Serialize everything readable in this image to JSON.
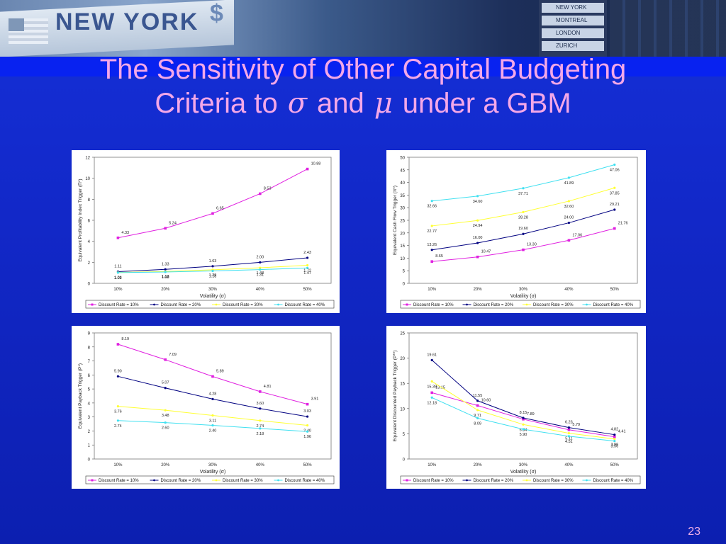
{
  "slide": {
    "title_line1": "The Sensitivity of Other Capital Budgeting",
    "title_line2_pre": "Criteria to",
    "sigma": "σ",
    "and": "and",
    "mu": "μ",
    "title_line2_post": "under a GBM",
    "page_number": "23"
  },
  "background": {
    "sign_text": "NEW YORK",
    "dollar": "$",
    "board_rows": [
      "NEW YORK",
      "MONTREAL",
      "LONDON",
      "ZURICH"
    ]
  },
  "colors": {
    "title": "#f4a8e8",
    "series": [
      "#e020e0",
      "#000080",
      "#ffff33",
      "#40e0f0"
    ]
  },
  "chart_data": [
    {
      "type": "line",
      "ylabel": "Equivalent Profitability Index Trigger",
      "ylabel_sym": "(Π*)",
      "xlabel": "Volatility",
      "xlabel_sym": "(σ)",
      "categories": [
        "10%",
        "20%",
        "30%",
        "40%",
        "50%"
      ],
      "ylim": [
        0,
        12
      ],
      "yticks": [
        0,
        2,
        4,
        6,
        8,
        10,
        12
      ],
      "series": [
        {
          "name": "Discount Rate = 10%",
          "values": [
            4.33,
            5.24,
            6.65,
            8.53,
            10.88
          ]
        },
        {
          "name": "Discount Rate = 20%",
          "values": [
            1.11,
            1.33,
            1.63,
            2.0,
            2.43
          ]
        },
        {
          "name": "Discount Rate = 30%",
          "values": [
            1.04,
            1.13,
            1.29,
            1.48,
            1.72
          ]
        },
        {
          "name": "Discount Rate = 40%",
          "values": [
            1.02,
            1.08,
            1.18,
            1.31,
            1.47
          ]
        }
      ]
    },
    {
      "type": "line",
      "ylabel": "Equivalent Cash Flow Trigger",
      "ylabel_sym": "(π*)",
      "xlabel": "Volatility",
      "xlabel_sym": "(σ)",
      "categories": [
        "10%",
        "20%",
        "30%",
        "40%",
        "50%"
      ],
      "ylim": [
        0,
        50
      ],
      "yticks": [
        0,
        5,
        10,
        15,
        20,
        25,
        30,
        35,
        40,
        45,
        50
      ],
      "series": [
        {
          "name": "Discount Rate = 10%",
          "values": [
            8.65,
            10.47,
            13.3,
            17.06,
            21.76
          ]
        },
        {
          "name": "Discount Rate = 20%",
          "values": [
            13.26,
            16.0,
            19.6,
            24.0,
            29.21
          ]
        },
        {
          "name": "Discount Rate = 30%",
          "values": [
            22.77,
            24.94,
            28.28,
            32.6,
            37.85
          ]
        },
        {
          "name": "Discount Rate = 40%",
          "values": [
            32.66,
            34.6,
            37.71,
            41.89,
            47.06
          ]
        }
      ]
    },
    {
      "type": "line",
      "ylabel": "Equivalent Payback Trigger",
      "ylabel_sym": "(P*)",
      "xlabel": "Volatility",
      "xlabel_sym": "(σ)",
      "categories": [
        "10%",
        "20%",
        "30%",
        "40%",
        "50%"
      ],
      "ylim": [
        0,
        9
      ],
      "yticks": [
        0,
        1,
        2,
        3,
        4,
        5,
        6,
        7,
        8,
        9
      ],
      "series": [
        {
          "name": "Discount Rate = 10%",
          "values": [
            8.19,
            7.09,
            5.89,
            4.81,
            3.91
          ]
        },
        {
          "name": "Discount Rate = 20%",
          "values": [
            5.9,
            5.07,
            4.28,
            3.6,
            3.03
          ]
        },
        {
          "name": "Discount Rate = 30%",
          "values": [
            3.76,
            3.48,
            3.11,
            2.74,
            2.4
          ]
        },
        {
          "name": "Discount Rate = 40%",
          "values": [
            2.74,
            2.6,
            2.4,
            2.18,
            1.96
          ]
        }
      ]
    },
    {
      "type": "line",
      "ylabel": "Equivalent Discounted Payback Trigger",
      "ylabel_sym": "(P**)",
      "xlabel": "Volatility",
      "xlabel_sym": "(σ)",
      "categories": [
        "10%",
        "20%",
        "30%",
        "40%",
        "50%"
      ],
      "ylim": [
        0,
        25
      ],
      "yticks": [
        0,
        5,
        10,
        15,
        20,
        25
      ],
      "series": [
        {
          "name": "Discount Rate = 10%",
          "values": [
            13.15,
            10.6,
            7.89,
            5.79,
            4.41
          ]
        },
        {
          "name": "Discount Rate = 20%",
          "values": [
            19.61,
            11.55,
            8.15,
            6.23,
            4.82
          ]
        },
        {
          "name": "Discount Rate = 30%",
          "values": [
            15.39,
            9.71,
            6.84,
            5.11,
            3.96
          ]
        },
        {
          "name": "Discount Rate = 40%",
          "values": [
            12.18,
            8.09,
            5.9,
            4.51,
            3.56
          ]
        }
      ]
    }
  ]
}
